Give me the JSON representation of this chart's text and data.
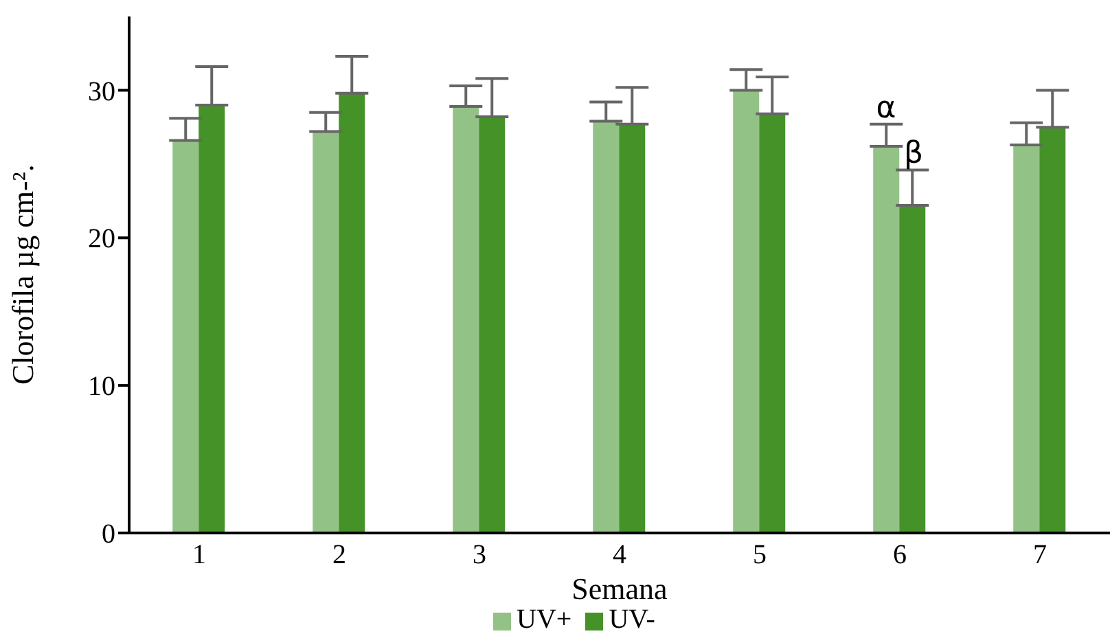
{
  "chart_data": {
    "type": "bar",
    "xlabel": "Semana",
    "ylabel": "Clorofila µg cm-².",
    "categories": [
      "1",
      "2",
      "3",
      "4",
      "5",
      "6",
      "7"
    ],
    "series": [
      {
        "name": "UV+",
        "color": "#93c287",
        "values": [
          26.6,
          27.2,
          28.9,
          27.9,
          30.0,
          26.2,
          26.3
        ],
        "errors": [
          [
            26.6,
            28.1
          ],
          [
            27.2,
            28.5
          ],
          [
            28.9,
            30.3
          ],
          [
            27.9,
            29.2
          ],
          [
            30.0,
            31.4
          ],
          [
            26.2,
            27.7
          ],
          [
            26.3,
            27.8
          ]
        ]
      },
      {
        "name": "UV-",
        "color": "#459229",
        "values": [
          29.0,
          29.8,
          28.2,
          27.7,
          28.4,
          22.2,
          27.5
        ],
        "errors": [
          [
            29.0,
            31.6
          ],
          [
            29.8,
            32.3
          ],
          [
            28.2,
            30.8
          ],
          [
            27.7,
            30.2
          ],
          [
            28.4,
            30.9
          ],
          [
            22.2,
            24.6
          ],
          [
            27.5,
            30.0
          ]
        ]
      }
    ],
    "ylim": [
      0,
      35
    ],
    "yticks": [
      0,
      10,
      20,
      30
    ],
    "grid": false,
    "legend": "bottom",
    "annotations": [
      {
        "text": "α",
        "x": "6",
        "y": 27.7
      },
      {
        "text": "β",
        "x": "6",
        "y": 24.6
      }
    ]
  }
}
